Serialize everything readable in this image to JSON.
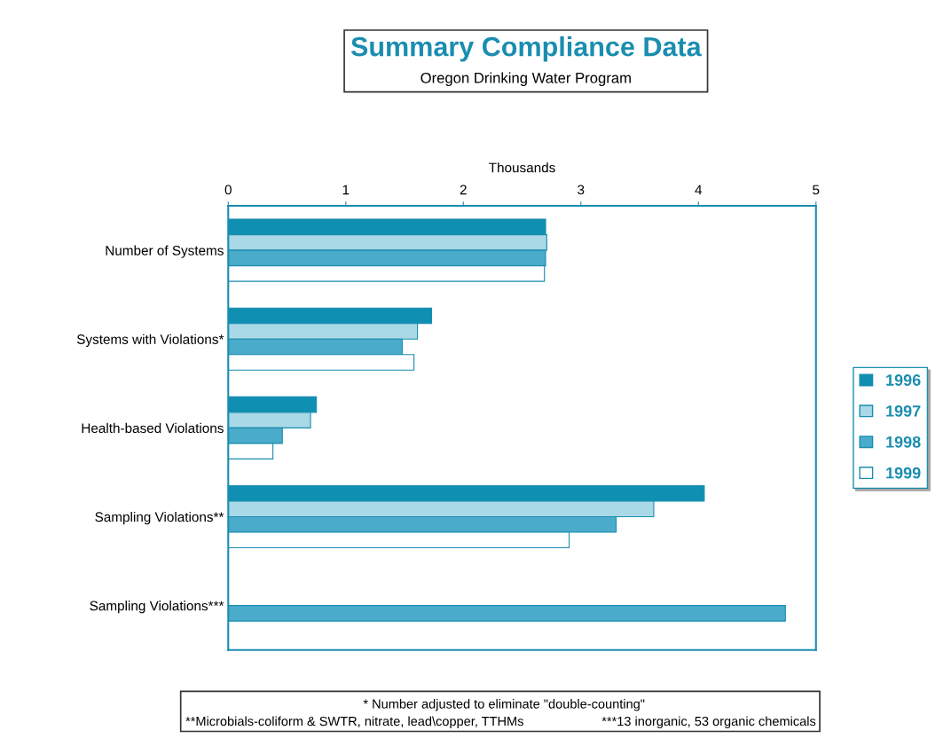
{
  "chart_data": {
    "type": "bar",
    "orientation": "horizontal",
    "title": "Summary Compliance Data",
    "subtitle": "Oregon Drinking Water Program",
    "xlabel": "Thousands",
    "categories": [
      "Number of Systems",
      "Systems with Violations*",
      "Health-based Violations",
      "Sampling Violations**",
      "Sampling Violations***"
    ],
    "series": [
      {
        "name": "1996",
        "color": "#0f8fb2",
        "values": [
          2.7,
          1.73,
          0.75,
          4.05,
          null
        ]
      },
      {
        "name": "1997",
        "color": "#a9d9e6",
        "values": [
          2.71,
          1.61,
          0.7,
          3.62,
          null
        ]
      },
      {
        "name": "1998",
        "color": "#4babca",
        "values": [
          2.7,
          1.48,
          0.46,
          3.3,
          4.74
        ]
      },
      {
        "name": "1999",
        "color": "#ffffff",
        "values": [
          2.69,
          1.58,
          0.38,
          2.9,
          null
        ]
      }
    ],
    "xlim": [
      0,
      5
    ],
    "xticks": [
      0,
      1,
      2,
      3,
      4,
      5
    ],
    "legend": "right",
    "grid": false,
    "annotations": [
      "* Number adjusted to eliminate \"double-counting\"",
      "**Microbials-coliform & SWTR, nitrate, lead\\copper, TTHMs",
      "***13 inorganic, 53 organic chemicals"
    ]
  }
}
